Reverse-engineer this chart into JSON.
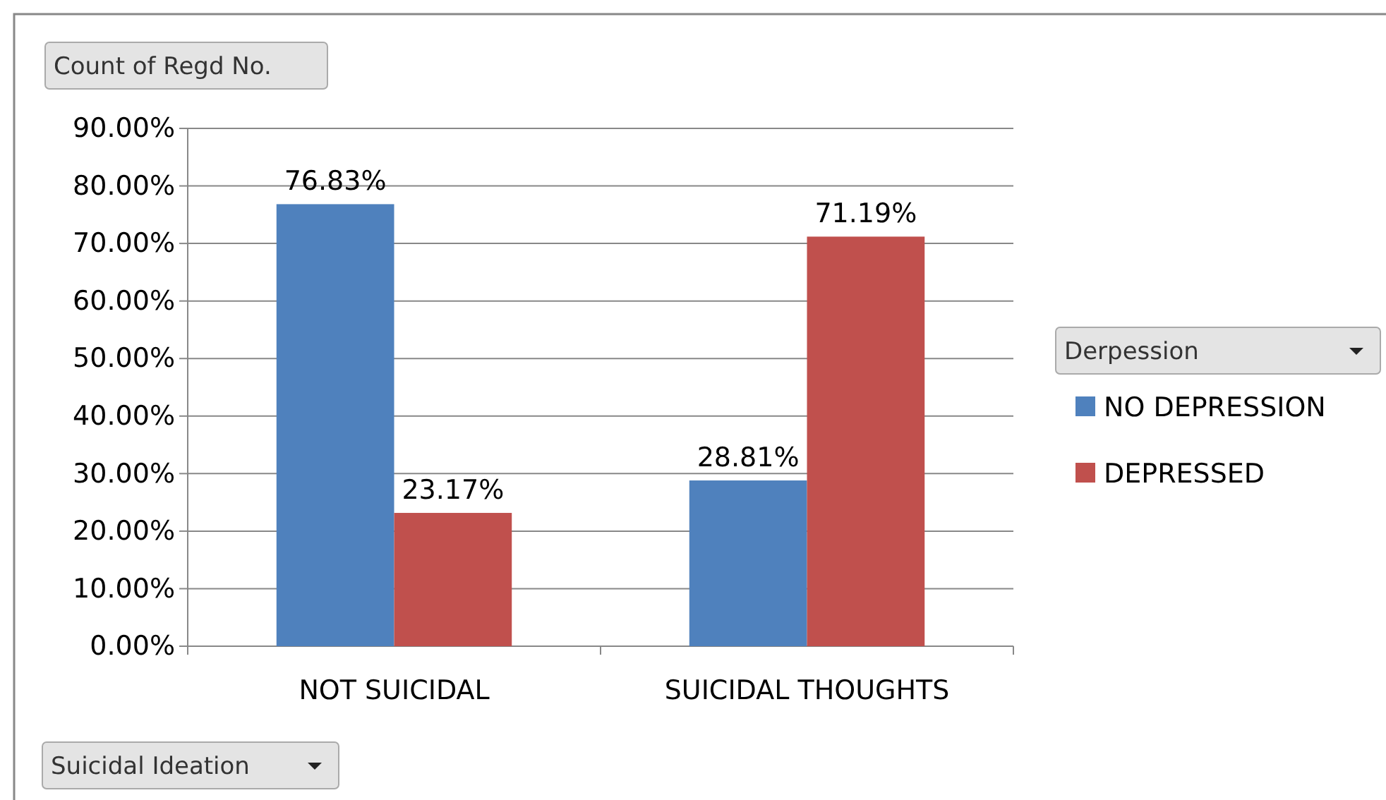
{
  "chart_data": {
    "type": "bar",
    "annotations": [
      "Count of Regd No."
    ],
    "xlabel": "Suicidal Ideation",
    "legend_title": "Derpession",
    "categories": [
      "NOT SUICIDAL",
      "SUICIDAL THOUGHTS"
    ],
    "series": [
      {
        "name": "NO DEPRESSION",
        "color": "#4f81bd",
        "values": [
          76.83,
          28.81
        ],
        "value_labels": [
          "76.83%",
          "28.81%"
        ]
      },
      {
        "name": "DEPRESSED",
        "color": "#c0504d",
        "values": [
          23.17,
          71.19
        ],
        "value_labels": [
          "23.17%",
          "71.19%"
        ]
      }
    ],
    "ylim": [
      0,
      90
    ],
    "yticks": [
      {
        "value": 0,
        "label": "0.00%"
      },
      {
        "value": 10,
        "label": "10.00%"
      },
      {
        "value": 20,
        "label": "20.00%"
      },
      {
        "value": 30,
        "label": "30.00%"
      },
      {
        "value": 40,
        "label": "40.00%"
      },
      {
        "value": 50,
        "label": "50.00%"
      },
      {
        "value": 60,
        "label": "60.00%"
      },
      {
        "value": 70,
        "label": "70.00%"
      },
      {
        "value": 80,
        "label": "80.00%"
      },
      {
        "value": 90,
        "label": "90.00%"
      }
    ],
    "grid": "y",
    "legend": "right"
  }
}
